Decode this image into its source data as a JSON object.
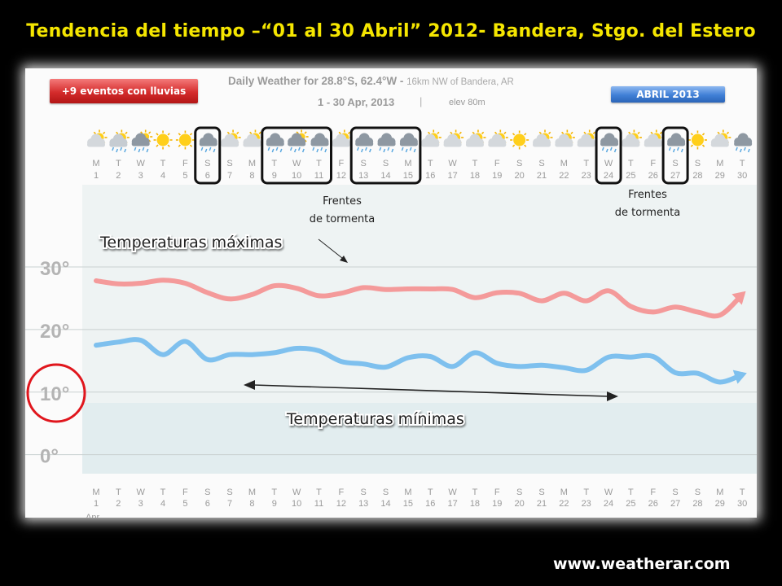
{
  "slide": {
    "title": "Tendencia del tiempo –“01 al 30 Abril” 2012- Bandera, Stgo. del Estero",
    "site": "www.weatherar.com"
  },
  "web": {
    "title": "Daily Weather for 28.8°S, 62.4°W -",
    "subtitle": "16km NW of Bandera, AR",
    "dates": "1 - 30 Apr, 2013",
    "separator": "|",
    "elev": "elev 80m"
  },
  "labels": {
    "rain_events": "+9 eventos con lluvias",
    "month": "ABRIL 2013",
    "storm_line1": "Frentes",
    "storm_line2": "de tormenta",
    "max_temps": "Temperaturas máximas",
    "min_temps": "Temperaturas mínimas",
    "month_abbrev": "Apr"
  },
  "colors": {
    "max_line": "#f49a9a",
    "min_line": "#7ec0ee",
    "storm_box": "#111111",
    "highlight_circle": "#e0161d",
    "title": "#f5e600"
  },
  "chart_data": {
    "type": "line",
    "x": [
      1,
      2,
      3,
      4,
      5,
      6,
      7,
      8,
      9,
      10,
      11,
      12,
      13,
      14,
      15,
      16,
      17,
      18,
      19,
      20,
      21,
      22,
      23,
      24,
      25,
      26,
      27,
      28,
      29,
      30
    ],
    "weekdays": [
      "M",
      "T",
      "W",
      "T",
      "F",
      "S",
      "S",
      "M",
      "T",
      "W",
      "T",
      "F",
      "S",
      "S",
      "M",
      "T",
      "W",
      "T",
      "F",
      "S",
      "S",
      "M",
      "T",
      "W",
      "T",
      "F",
      "S",
      "S",
      "M",
      "T"
    ],
    "icons": [
      "partly-cloudy",
      "sun-rain",
      "cloud-rain-sun",
      "sun",
      "sun",
      "cloud-rain",
      "partly-cloudy",
      "partly-cloudy",
      "cloud-rain",
      "cloud-rain-sun",
      "cloud-rain",
      "partly-cloudy",
      "cloud-rain",
      "cloud-rain",
      "cloud-rain",
      "partly-cloudy",
      "partly-cloudy",
      "partly-cloudy",
      "partly-cloudy",
      "sun",
      "partly-cloudy",
      "partly-cloudy",
      "partly-cloudy",
      "cloud-rain",
      "partly-cloudy",
      "partly-cloudy",
      "cloud-rain",
      "sun",
      "partly-cloudy",
      "cloud-rain"
    ],
    "storm_days": [
      6,
      [
        9,
        11
      ],
      [
        13,
        15
      ],
      24,
      27
    ],
    "y_ticks": [
      0,
      10,
      20,
      30
    ],
    "y_tick_labels": [
      "0°",
      "10°",
      "20°",
      "30°"
    ],
    "ylim": [
      -2,
      33
    ],
    "series": [
      {
        "values": [
          27.8,
          27.3,
          27.4,
          27.9,
          27.4,
          25.9,
          24.9,
          25.6,
          27.0,
          26.6,
          25.4,
          25.8,
          26.7,
          26.4,
          26.5,
          26.5,
          26.4,
          25.1,
          25.9,
          25.8,
          24.6,
          25.8,
          24.6,
          26.2,
          23.7,
          22.8,
          23.6,
          22.8,
          22.3,
          25.6
        ]
      },
      {
        "values": [
          17.5,
          18.0,
          18.3,
          16.0,
          18.1,
          15.2,
          16.0,
          16.0,
          16.3,
          17.0,
          16.6,
          14.9,
          14.5,
          14.0,
          15.5,
          15.7,
          14.1,
          16.3,
          14.6,
          14.1,
          14.3,
          13.9,
          13.5,
          15.6,
          15.6,
          15.7,
          13.1,
          13.0,
          11.6,
          12.8
        ]
      }
    ]
  }
}
